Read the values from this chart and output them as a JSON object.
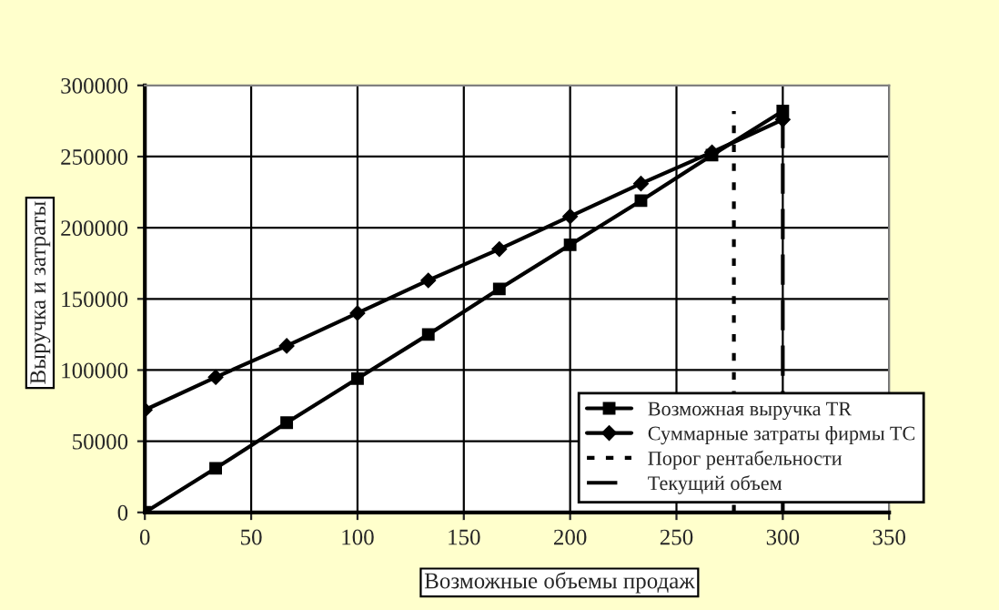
{
  "chart_data": {
    "type": "line",
    "xlabel": "Возможные объемы продаж",
    "ylabel": "Выручка и затраты",
    "xlim": [
      0,
      350
    ],
    "xticks": [
      0,
      50,
      100,
      150,
      200,
      250,
      300,
      350
    ],
    "ylim": [
      0,
      300000
    ],
    "yticks": [
      0,
      50000,
      100000,
      150000,
      200000,
      250000,
      300000
    ],
    "grid": true,
    "legend": "bottom right",
    "series": [
      {
        "name": "Возможная выручка TR",
        "color": "#000000",
        "marker": "square",
        "line_style": "solid",
        "x": [
          0,
          33.3,
          66.7,
          100,
          133.3,
          166.7,
          200,
          233.3,
          266.7,
          300
        ],
        "values": [
          0,
          31000,
          63000,
          94000,
          125000,
          157000,
          188000,
          219000,
          251000,
          282000
        ]
      },
      {
        "name": "Суммарные затраты фирмы TC",
        "color": "#000000",
        "marker": "diamond",
        "line_style": "solid",
        "x": [
          0,
          33.3,
          66.7,
          100,
          133.3,
          166.7,
          200,
          233.3,
          266.7,
          300
        ],
        "values": [
          72000,
          95000,
          117000,
          140000,
          163000,
          185000,
          208000,
          231000,
          253000,
          276000
        ]
      },
      {
        "name": "Порог рентабельности",
        "color": "#000000",
        "marker": "none",
        "line_style": "dotted",
        "x": [
          277,
          277
        ],
        "values": [
          0,
          282000
        ]
      },
      {
        "name": "Текущий объем",
        "color": "#000000",
        "marker": "none",
        "line_style": "dashed",
        "x": [
          300,
          300
        ],
        "values": [
          0,
          282000
        ]
      }
    ]
  }
}
